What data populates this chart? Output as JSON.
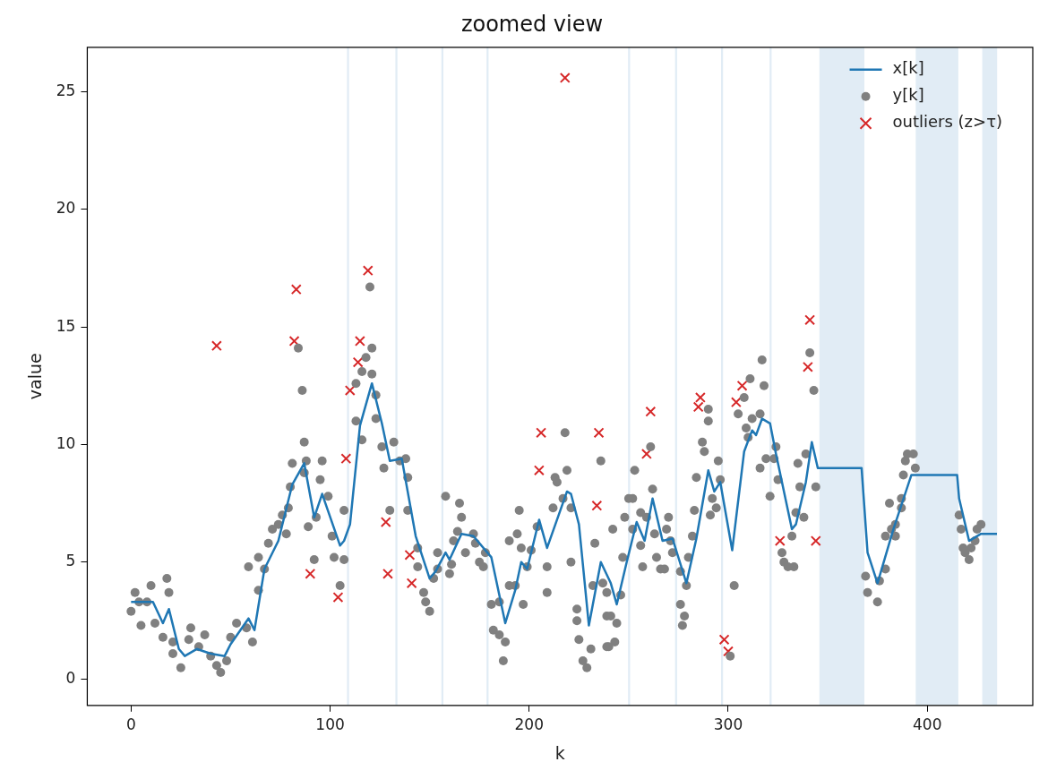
{
  "chart_data": {
    "type": "line",
    "title": "zoomed view",
    "xlabel": "k",
    "ylabel": "value",
    "xlim": [
      -22,
      453
    ],
    "ylim": [
      -1.1,
      26.9
    ],
    "xticks": [
      0,
      100,
      200,
      300,
      400
    ],
    "yticks": [
      0,
      5,
      10,
      15,
      20,
      25
    ],
    "legend": "top right",
    "bands": [
      {
        "axis": "x",
        "from": 108.5,
        "to": 109.5,
        "color": "#e1ecf5"
      },
      {
        "axis": "x",
        "from": 132.8,
        "to": 133.8,
        "color": "#e1ecf5"
      },
      {
        "axis": "x",
        "from": 155.9,
        "to": 156.9,
        "color": "#e1ecf5"
      },
      {
        "axis": "x",
        "from": 178.6,
        "to": 179.6,
        "color": "#e1ecf5"
      },
      {
        "axis": "x",
        "from": 249.7,
        "to": 250.7,
        "color": "#e1ecf5"
      },
      {
        "axis": "x",
        "from": 273.3,
        "to": 274.3,
        "color": "#e1ecf5"
      },
      {
        "axis": "x",
        "from": 296.4,
        "to": 297.4,
        "color": "#e1ecf5"
      },
      {
        "axis": "x",
        "from": 320.8,
        "to": 321.8,
        "color": "#e1ecf5"
      },
      {
        "axis": "x",
        "from": 345.8,
        "to": 368.4,
        "color": "#e1ecf5"
      },
      {
        "axis": "x",
        "from": 394.2,
        "to": 415.6,
        "color": "#e1ecf5"
      },
      {
        "axis": "x",
        "from": 427.6,
        "to": 435.1,
        "color": "#e1ecf5"
      }
    ],
    "series": [
      {
        "name": "x[k]",
        "type": "line",
        "color": "#1f77b4",
        "marker": "none",
        "x": [
          0,
          11,
          16,
          19,
          24,
          27,
          33,
          40,
          47,
          50,
          59,
          62,
          67,
          74,
          81,
          87,
          92,
          96,
          105,
          107,
          110,
          115,
          121,
          126,
          130,
          136,
          143,
          150,
          153,
          158,
          160,
          166,
          172,
          181,
          188,
          193,
          196,
          199,
          205,
          209,
          219,
          221,
          225,
          230,
          236,
          241,
          244,
          249,
          254,
          258,
          262,
          267,
          272,
          279,
          284,
          290,
          293,
          296,
          302,
          308,
          312,
          314,
          317,
          321,
          324,
          332,
          334,
          339,
          342,
          345,
          367,
          370,
          375,
          383,
          392,
          415,
          416,
          421,
          427,
          435
        ],
        "values": [
          3.3,
          3.3,
          2.4,
          3.0,
          1.3,
          1.0,
          1.3,
          1.1,
          1.0,
          1.5,
          2.6,
          2.1,
          4.7,
          5.9,
          8.3,
          9.2,
          6.9,
          7.9,
          5.7,
          5.9,
          6.6,
          10.8,
          12.6,
          10.9,
          9.3,
          9.4,
          6.1,
          4.3,
          4.6,
          5.4,
          5.1,
          6.2,
          6.1,
          5.2,
          2.4,
          3.8,
          5.0,
          4.7,
          6.8,
          5.6,
          8.0,
          7.9,
          6.6,
          2.3,
          5.0,
          4.1,
          3.2,
          5.0,
          6.7,
          5.9,
          7.7,
          5.9,
          6.0,
          4.1,
          6.0,
          8.9,
          8.0,
          8.4,
          5.5,
          9.7,
          10.6,
          10.4,
          11.1,
          10.9,
          9.6,
          6.4,
          6.6,
          8.4,
          10.1,
          9.0,
          9.0,
          5.4,
          4.1,
          6.4,
          8.7,
          8.7,
          7.7,
          5.9,
          6.2,
          6.2
        ]
      },
      {
        "name": "y[k]",
        "type": "scatter",
        "color": "#808080",
        "marker": "circle",
        "x": [
          0,
          2,
          5,
          4,
          10,
          8,
          12,
          18,
          19,
          16,
          21,
          21,
          25,
          30,
          29,
          37,
          34,
          40,
          43,
          45,
          48,
          50,
          53,
          58,
          61,
          64,
          59,
          64,
          67,
          69,
          71,
          74,
          76,
          78,
          80,
          79,
          81,
          84,
          86,
          87,
          87,
          88,
          89,
          93,
          95,
          96,
          92,
          99,
          101,
          102,
          105,
          107,
          107,
          120,
          121,
          118,
          116,
          121,
          113,
          113,
          123,
          116,
          123,
          126,
          127,
          132,
          130,
          135,
          138,
          139,
          139,
          144,
          144,
          147,
          150,
          148,
          152,
          154,
          158,
          154,
          160,
          161,
          162,
          165,
          166,
          164,
          168,
          172,
          173,
          175,
          178,
          177,
          181,
          185,
          182,
          185,
          188,
          187,
          190,
          193,
          190,
          194,
          195,
          197,
          196,
          199,
          201,
          204,
          209,
          209,
          212,
          213,
          214,
          217,
          218,
          219,
          221,
          221,
          224,
          224,
          225,
          227,
          229,
          231,
          233,
          232,
          236,
          237,
          239,
          239,
          239,
          241,
          244,
          240,
          243,
          246,
          247,
          242,
          248,
          250,
          252,
          253,
          252,
          256,
          257,
          256,
          259,
          261,
          262,
          263,
          264,
          266,
          268,
          269,
          270,
          271,
          272,
          276,
          276,
          278,
          277,
          279,
          280,
          282,
          283,
          284,
          287,
          288,
          290,
          290,
          292,
          294,
          291,
          295,
          296,
          303,
          301,
          305,
          308,
          311,
          309,
          310,
          312,
          316,
          316,
          318,
          317,
          319,
          321,
          323,
          324,
          325,
          327,
          328,
          330,
          333,
          332,
          334,
          338,
          336,
          335,
          339,
          344,
          343,
          341,
          369,
          370,
          375,
          376,
          379,
          379,
          382,
          384,
          384,
          381,
          387,
          387,
          388,
          389,
          390,
          393,
          394,
          416,
          417,
          418,
          419,
          421,
          422,
          424,
          425,
          427
        ],
        "values": [
          2.9,
          3.7,
          2.3,
          3.3,
          4.0,
          3.3,
          2.4,
          4.3,
          3.7,
          1.8,
          1.6,
          1.1,
          0.5,
          2.2,
          1.7,
          1.9,
          1.4,
          1.0,
          0.6,
          0.3,
          0.8,
          1.8,
          2.4,
          2.2,
          1.6,
          3.8,
          4.8,
          5.2,
          4.7,
          5.8,
          6.4,
          6.6,
          7.0,
          6.2,
          8.2,
          7.3,
          9.2,
          14.1,
          12.3,
          10.1,
          8.8,
          9.3,
          6.5,
          6.9,
          8.5,
          9.3,
          5.1,
          7.8,
          6.1,
          5.2,
          4.0,
          5.1,
          7.2,
          16.7,
          14.1,
          13.7,
          13.1,
          13.0,
          12.6,
          11.0,
          12.1,
          10.2,
          11.1,
          9.9,
          9.0,
          10.1,
          7.2,
          9.3,
          9.4,
          8.6,
          7.2,
          5.6,
          4.8,
          3.7,
          2.9,
          3.3,
          4.3,
          5.4,
          7.8,
          4.7,
          4.5,
          4.9,
          5.9,
          7.5,
          6.9,
          6.3,
          5.4,
          6.2,
          5.8,
          5.0,
          5.4,
          4.8,
          3.2,
          3.3,
          2.1,
          1.9,
          1.6,
          0.8,
          4.0,
          4.0,
          5.9,
          6.2,
          7.2,
          3.2,
          5.6,
          4.8,
          5.5,
          6.5,
          4.8,
          3.7,
          7.3,
          8.6,
          8.4,
          7.7,
          10.5,
          8.9,
          7.3,
          5.0,
          3.0,
          2.5,
          1.7,
          0.8,
          0.5,
          1.3,
          5.8,
          4.0,
          9.3,
          4.1,
          2.7,
          1.4,
          3.7,
          2.7,
          2.4,
          1.4,
          1.6,
          3.6,
          5.2,
          6.4,
          6.9,
          7.7,
          7.7,
          8.9,
          6.4,
          5.7,
          4.8,
          7.1,
          6.9,
          9.9,
          8.1,
          6.2,
          5.2,
          4.7,
          4.7,
          6.4,
          6.9,
          5.9,
          5.4,
          4.6,
          3.2,
          2.7,
          2.3,
          4.0,
          5.2,
          6.1,
          7.2,
          8.6,
          10.1,
          9.7,
          11.5,
          11.0,
          7.7,
          7.3,
          7.0,
          9.3,
          8.5,
          4.0,
          1.0,
          11.3,
          12.0,
          12.8,
          10.7,
          10.3,
          11.1,
          9.0,
          11.3,
          12.5,
          13.6,
          9.4,
          7.8,
          9.4,
          9.9,
          8.5,
          5.4,
          5.0,
          4.8,
          4.8,
          6.1,
          7.1,
          6.9,
          8.2,
          9.2,
          9.6,
          8.2,
          12.3,
          13.9,
          4.4,
          3.7,
          3.3,
          4.2,
          4.7,
          6.1,
          6.4,
          6.6,
          6.1,
          7.5,
          7.3,
          7.7,
          8.7,
          9.3,
          9.6,
          9.6,
          9.0,
          7.0,
          6.4,
          5.6,
          5.4,
          5.1,
          5.6,
          5.9,
          6.4,
          6.6
        ]
      },
      {
        "name": "outliers (z>τ)",
        "type": "scatter",
        "color": "#d62728",
        "marker": "cross",
        "x": [
          43,
          83,
          82,
          90,
          104,
          108,
          110,
          114,
          115,
          119,
          128,
          129,
          140,
          141,
          205,
          206,
          218,
          234,
          235,
          259,
          261,
          285,
          286,
          298,
          300,
          304,
          307,
          326,
          340,
          341,
          344
        ],
        "values": [
          14.2,
          16.6,
          14.4,
          4.5,
          3.5,
          9.4,
          12.3,
          13.5,
          14.4,
          17.4,
          6.7,
          4.5,
          5.3,
          4.1,
          8.9,
          10.5,
          25.6,
          7.4,
          10.5,
          9.6,
          11.4,
          11.6,
          12.0,
          1.7,
          1.2,
          11.8,
          12.5,
          5.9,
          13.3,
          15.3,
          5.9
        ]
      }
    ]
  }
}
